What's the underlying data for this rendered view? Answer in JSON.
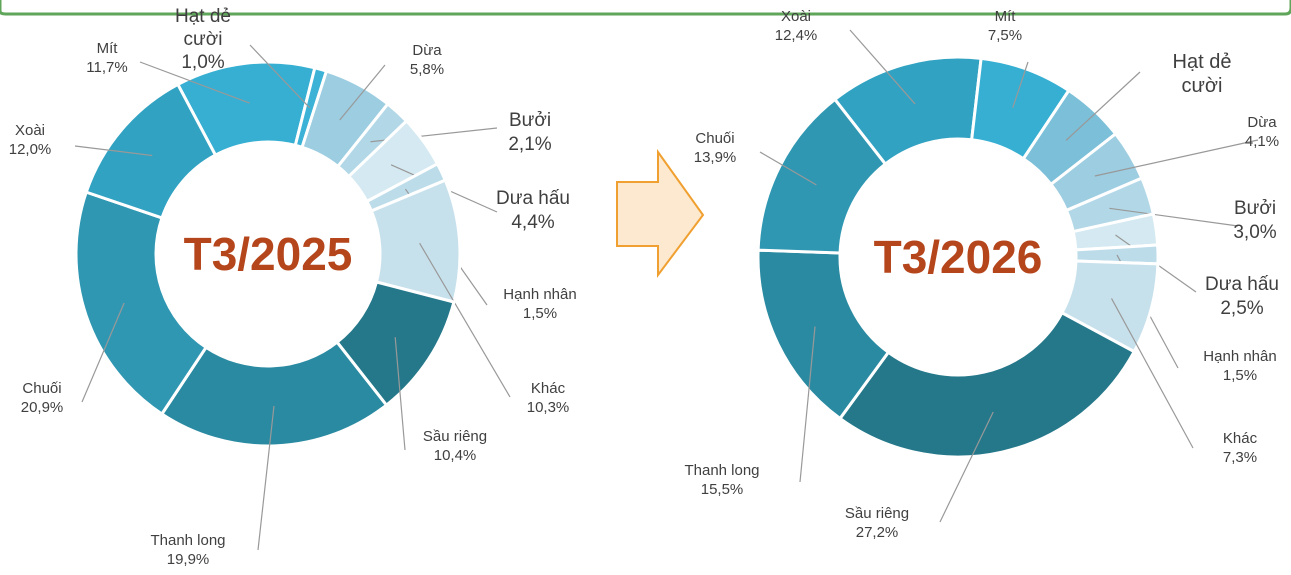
{
  "chart_data": [
    {
      "type": "donut",
      "title": "T3/2025",
      "categories": [
        "Mít",
        "Hạt dẻ cười",
        "Dừa",
        "Bưởi",
        "Dưa hấu",
        "Hạnh nhân",
        "Khác",
        "Sầu riêng",
        "Thanh long",
        "Chuối",
        "Xoài"
      ],
      "values": [
        11.7,
        1.0,
        5.8,
        2.1,
        4.4,
        1.5,
        10.3,
        10.4,
        19.9,
        20.9,
        12.0
      ],
      "value_labels": [
        "11,7%",
        "1,0%",
        "5,8%",
        "2,1%",
        "4,4%",
        "1,5%",
        "10,3%",
        "10,4%",
        "19,9%",
        "20,9%",
        "12,0%"
      ],
      "colors": [
        "#36afd2",
        "#3cb3d6",
        "#9ccde1",
        "#b2d8e8",
        "#d4e9f1",
        "#bcdcea",
        "#c7e1ec",
        "#24788a",
        "#2a8aa1",
        "#2f97b2",
        "#31a2c2"
      ]
    },
    {
      "type": "donut",
      "title": "T3/2026",
      "categories": [
        "Xoài",
        "Mít",
        "Hạt dẻ cười",
        "Dừa",
        "Bưởi",
        "Dưa hấu",
        "Hạnh nhân",
        "Khác",
        "Sầu riêng",
        "Thanh long",
        "Chuối"
      ],
      "values": [
        12.4,
        7.5,
        5.1,
        4.1,
        3.0,
        2.5,
        1.5,
        7.3,
        27.2,
        15.5,
        13.9
      ],
      "value_labels": [
        "12,4%",
        "7,5%",
        null,
        "4,1%",
        "3,0%",
        "2,5%",
        "1,5%",
        "7,3%",
        "27,2%",
        "15,5%",
        "13,9%"
      ],
      "colors": [
        "#31a2c2",
        "#36afd2",
        "#7bbfd8",
        "#9ccde1",
        "#b2d8e8",
        "#d4e9f1",
        "#bcdcea",
        "#c7e1ec",
        "#24788a",
        "#2a8aa1",
        "#2f97b2"
      ]
    }
  ]
}
